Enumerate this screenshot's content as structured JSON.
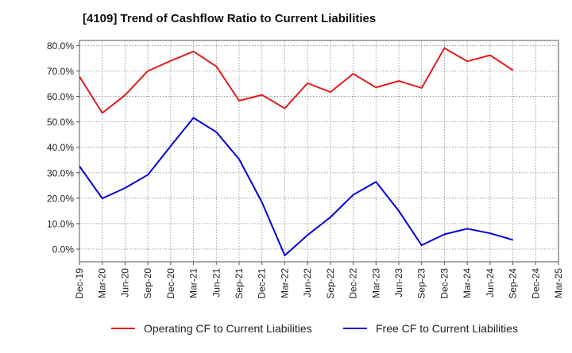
{
  "chart_data": {
    "type": "line",
    "title": "[4109]  Trend of Cashflow Ratio to Current Liabilities",
    "xlabel": "",
    "ylabel": "",
    "y_tick_labels": [
      "0.0%",
      "10.0%",
      "20.0%",
      "30.0%",
      "40.0%",
      "50.0%",
      "60.0%",
      "70.0%",
      "80.0%"
    ],
    "ylim": [
      -5,
      82
    ],
    "grid": true,
    "legend_position": "bottom",
    "categories": [
      "Dec-19",
      "Mar-20",
      "Jun-20",
      "Sep-20",
      "Dec-20",
      "Mar-21",
      "Jun-21",
      "Sep-21",
      "Dec-21",
      "Mar-22",
      "Jun-22",
      "Sep-22",
      "Dec-22",
      "Mar-23",
      "Jun-23",
      "Sep-23",
      "Dec-23",
      "Mar-24",
      "Jun-24",
      "Sep-24",
      "Dec-24",
      "Mar-25"
    ],
    "series": [
      {
        "name": "Operating CF to Current Liabilities",
        "color": "#e31a1c",
        "values": [
          67.8,
          53.5,
          60.5,
          70.0,
          74.0,
          77.7,
          71.8,
          58.3,
          60.6,
          55.3,
          65.2,
          61.7,
          68.9,
          63.5,
          66.1,
          63.3,
          79.0,
          73.8,
          76.2,
          70.3,
          null,
          null
        ]
      },
      {
        "name": "Free CF to Current Liabilities",
        "color": "#0000dd",
        "values": [
          32.6,
          19.9,
          24.0,
          29.2,
          40.5,
          51.6,
          46.0,
          35.3,
          18.4,
          -2.5,
          5.5,
          12.5,
          21.3,
          26.4,
          15.0,
          1.5,
          5.8,
          8.0,
          6.2,
          3.6,
          null,
          null
        ]
      }
    ]
  }
}
